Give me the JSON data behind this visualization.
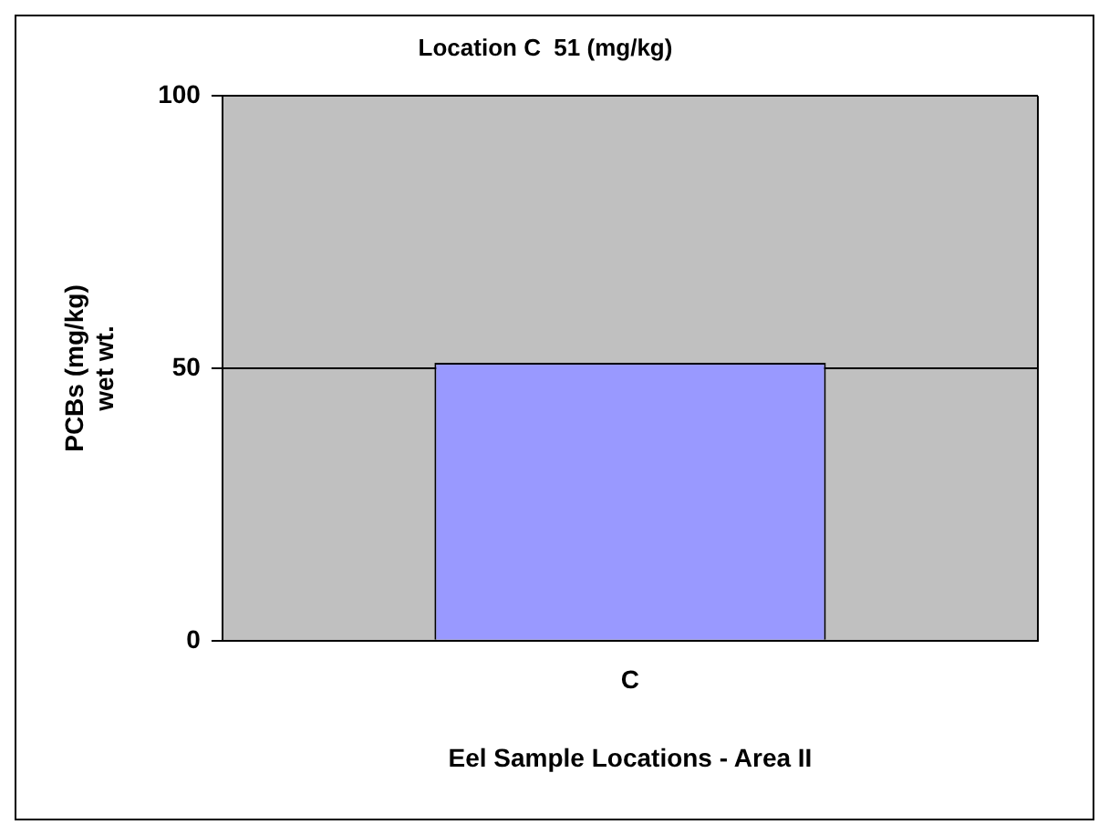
{
  "chart_data": {
    "type": "bar",
    "subtitle": "Location C  51 (mg/kg)",
    "xlabel": "Eel Sample Locations - Area II",
    "ylabel": "PCBs (mg/kg)\nwet wt.",
    "categories": [
      "C"
    ],
    "values": [
      51
    ],
    "color": "#9999ff",
    "ylim": [
      0,
      100
    ],
    "yticks": [
      0,
      50,
      100
    ],
    "grid": "y",
    "legend": false
  }
}
